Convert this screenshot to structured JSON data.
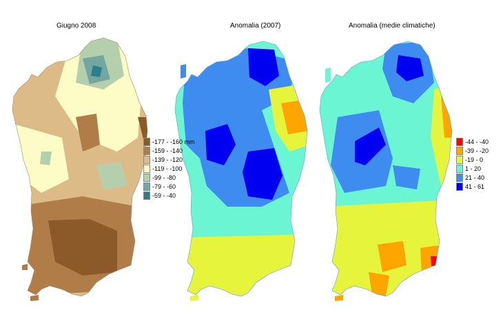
{
  "maps": [
    {
      "title": "Giugno 2008",
      "legend": [
        {
          "label": "-177 - -160 mm",
          "color": "#8c5a28"
        },
        {
          "label": "-159 - -140",
          "color": "#b07c48"
        },
        {
          "label": "-139 - -120",
          "color": "#dcbb88"
        },
        {
          "label": "-119 - -100",
          "color": "#fdfcc6"
        },
        {
          "label": "-99 - -80",
          "color": "#b4cfac"
        },
        {
          "label": "-79 - -60",
          "color": "#72a6a0"
        },
        {
          "label": "-59 - -40",
          "color": "#2d7d8a"
        }
      ]
    },
    {
      "title": "Anomalia (2007)"
    },
    {
      "title": "Anomalia (medie climatiche)",
      "legend": [
        {
          "label": "-44 - -40",
          "color": "#ff0000"
        },
        {
          "label": "-39 - -20",
          "color": "#ffa500"
        },
        {
          "label": "-19 - 0",
          "color": "#e6f53c"
        },
        {
          "label": "1 - 20",
          "color": "#6cf5d2"
        },
        {
          "label": "21 - 40",
          "color": "#3e8cf0"
        },
        {
          "label": "41 - 61",
          "color": "#0000f0"
        }
      ]
    }
  ]
}
